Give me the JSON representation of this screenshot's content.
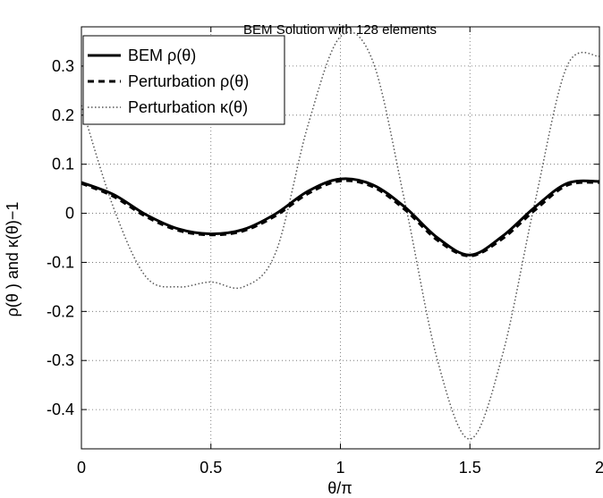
{
  "chart_data": {
    "type": "line",
    "title": "BEM Solution with 128 elements",
    "xlabel": "θ/π",
    "ylabel": "ρ(θ )  and κ(θ)−1",
    "xlim": [
      0,
      2
    ],
    "ylim": [
      -0.48,
      0.38
    ],
    "xticks": [
      0,
      0.5,
      1,
      1.5,
      2
    ],
    "xtick_labels": [
      "0",
      "0.5",
      "1",
      "1.5",
      "2"
    ],
    "yticks": [
      -0.4,
      -0.3,
      -0.2,
      -0.1,
      0,
      0.1,
      0.2,
      0.3
    ],
    "ytick_labels": [
      "-0.4",
      "-0.3",
      "-0.2",
      "-0.1",
      "0",
      "0.1",
      "0.2",
      "0.3"
    ],
    "grid": true,
    "legend_position": "top-left",
    "x": [
      0,
      0.125,
      0.25,
      0.375,
      0.5,
      0.625,
      0.75,
      0.875,
      1.0,
      1.125,
      1.25,
      1.375,
      1.5,
      1.625,
      1.75,
      1.875,
      2.0
    ],
    "series": [
      {
        "name": "BEM ρ(θ)",
        "style": "solid",
        "color": "#000000",
        "values": [
          0.063,
          0.038,
          -0.003,
          -0.032,
          -0.042,
          -0.033,
          -0.001,
          0.045,
          0.07,
          0.058,
          0.012,
          -0.05,
          -0.085,
          -0.047,
          0.012,
          0.061,
          0.065
        ]
      },
      {
        "name": "Perturbation ρ(θ)",
        "style": "dashed",
        "color": "#000000",
        "values": [
          0.061,
          0.034,
          -0.007,
          -0.035,
          -0.044,
          -0.036,
          -0.005,
          0.04,
          0.066,
          0.054,
          0.007,
          -0.055,
          -0.087,
          -0.052,
          0.006,
          0.057,
          0.063
        ]
      },
      {
        "name": "Perturbation κ(θ)",
        "style": "dotted",
        "color": "#000000",
        "values": [
          0.22,
          0.01,
          -0.13,
          -0.15,
          -0.14,
          -0.15,
          -0.08,
          0.18,
          0.36,
          0.31,
          0.02,
          -0.3,
          -0.46,
          -0.29,
          0.02,
          0.3,
          0.32
        ]
      }
    ]
  }
}
